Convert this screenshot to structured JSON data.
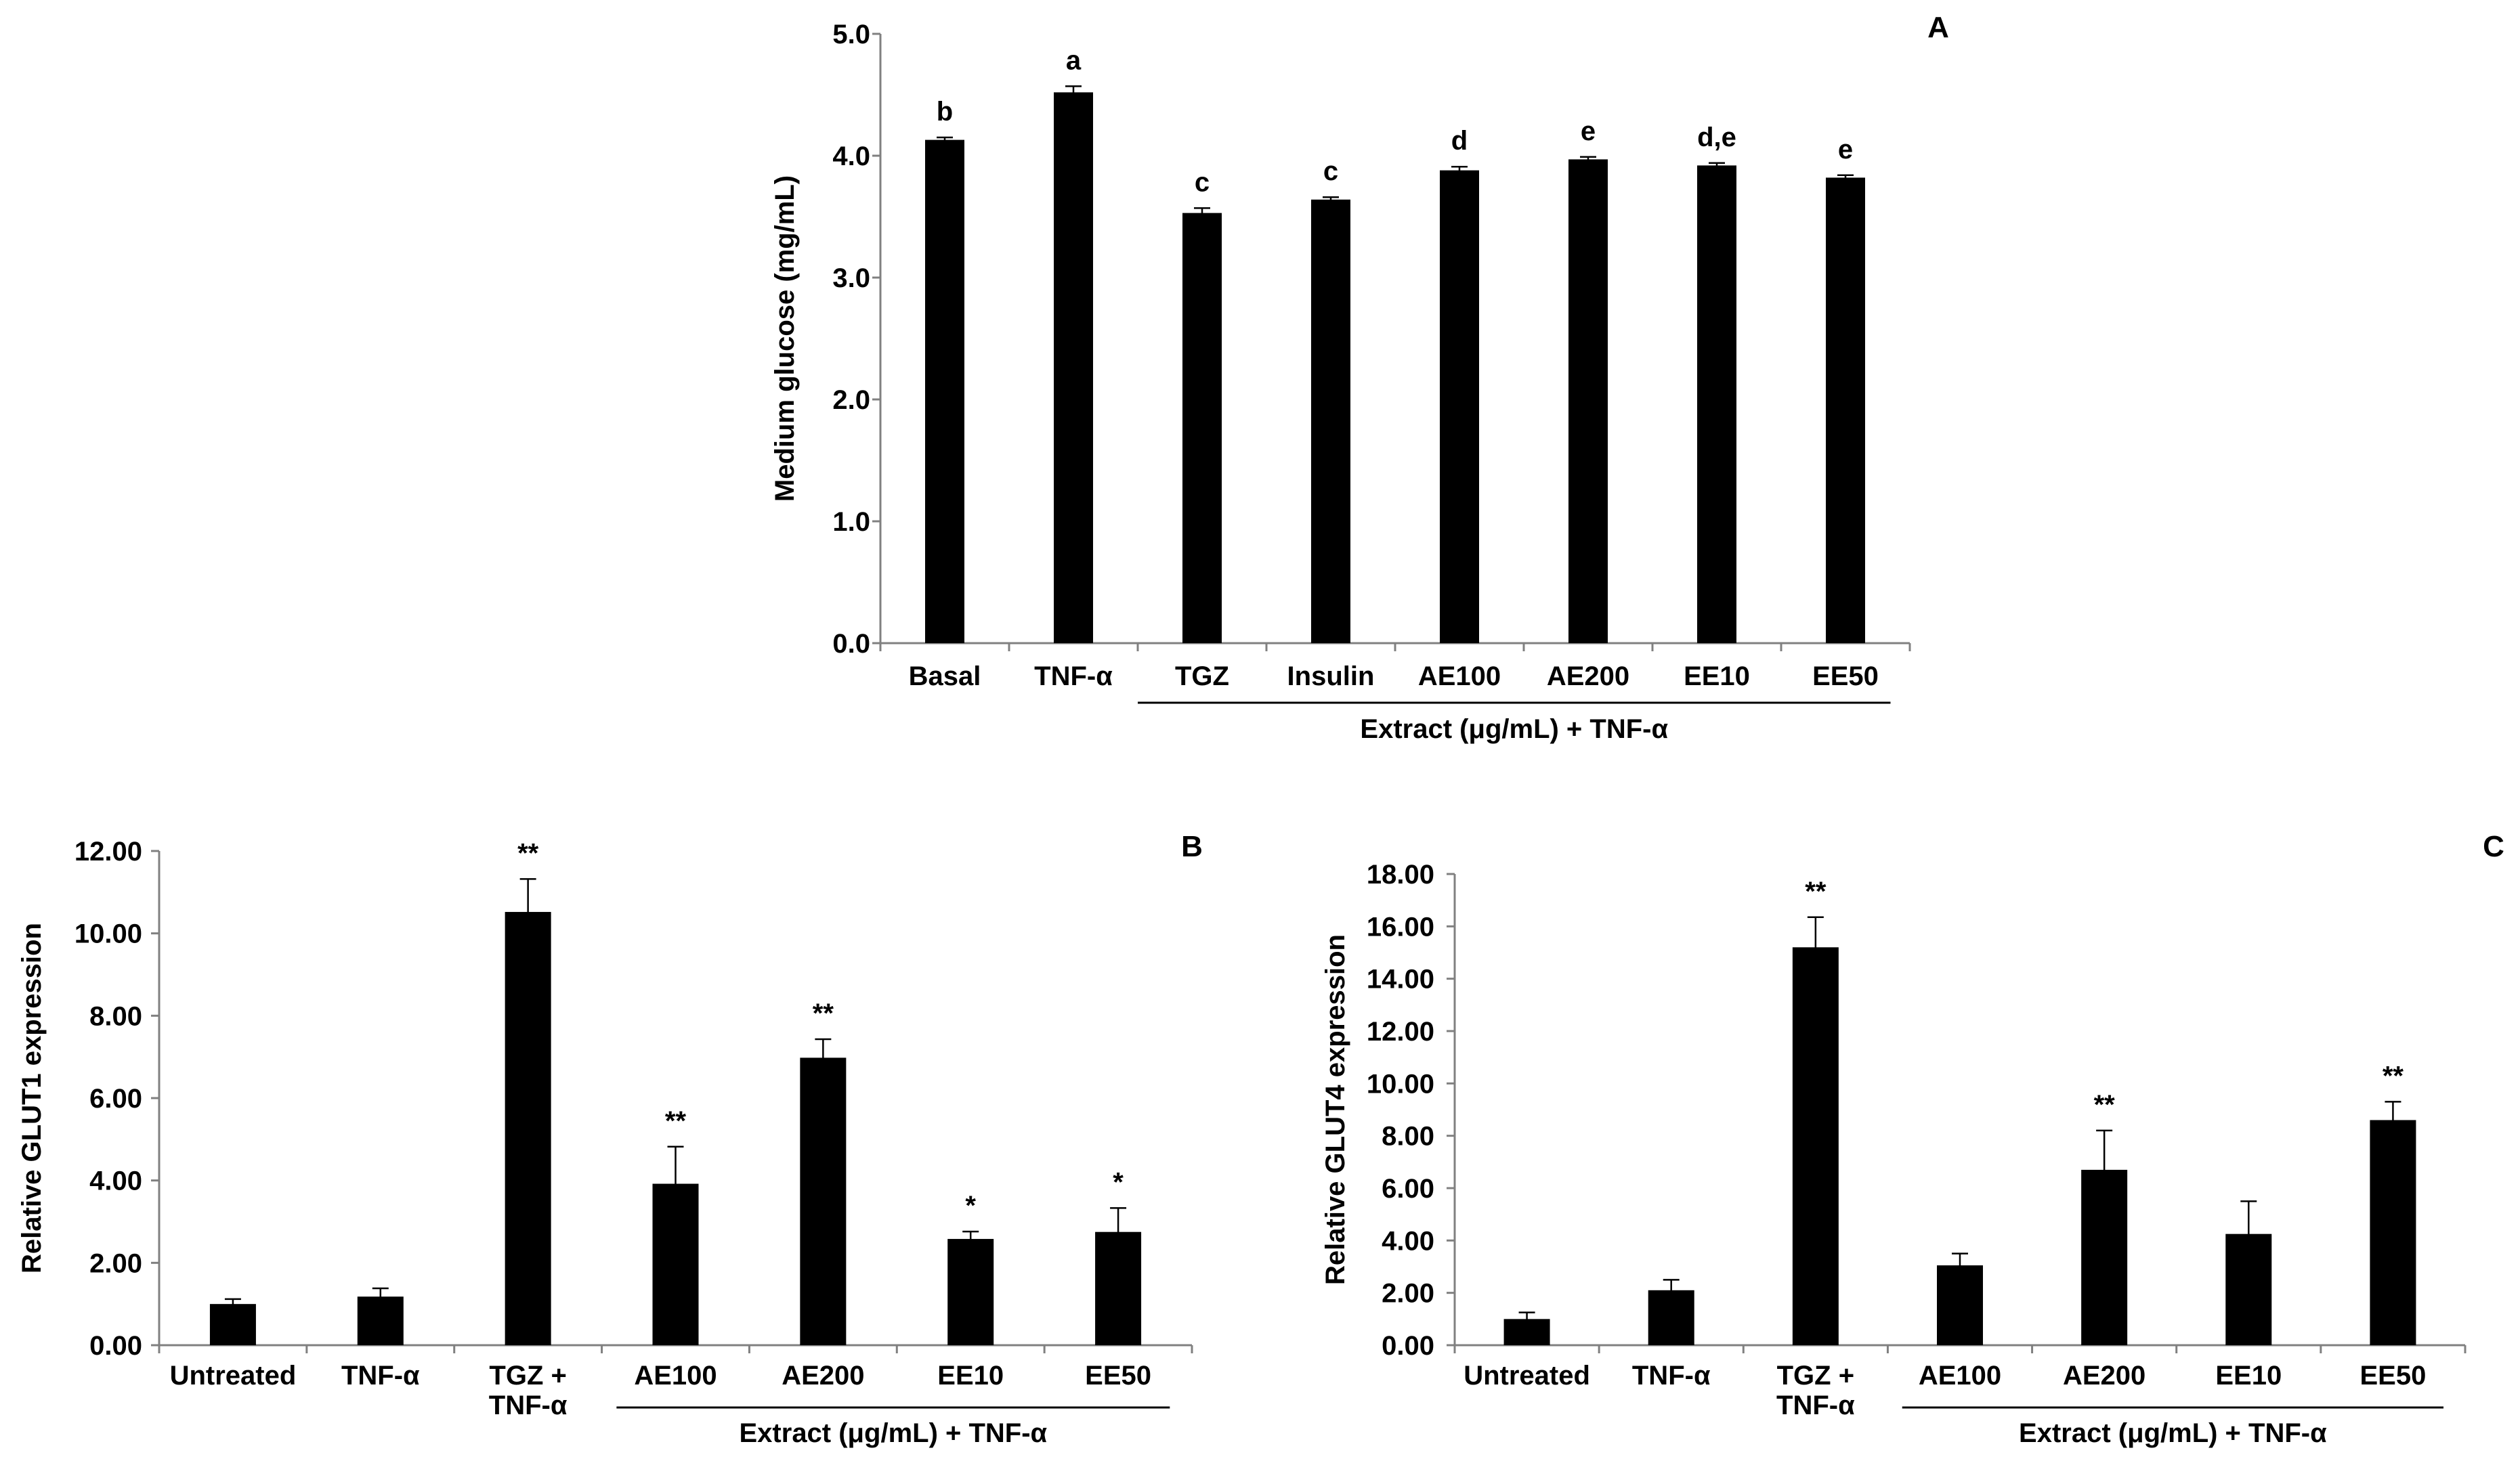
{
  "chart_data": [
    {
      "id": "A",
      "type": "bar",
      "panel_label": "A",
      "ylabel": "Medium glucose (mg/mL)",
      "xlabel": "",
      "group_label": "Extract (μg/mL) + TNF-α",
      "ylim": [
        0,
        5
      ],
      "yticks": [
        "0.0",
        "1.0",
        "2.0",
        "3.0",
        "4.0",
        "5.0"
      ],
      "categories": [
        [
          "Basal"
        ],
        [
          "TNF-α"
        ],
        [
          "TGZ"
        ],
        [
          "Insulin"
        ],
        [
          "AE100"
        ],
        [
          "AE200"
        ],
        [
          "EE10"
        ],
        [
          "EE50"
        ]
      ],
      "values": [
        4.13,
        4.52,
        3.53,
        3.64,
        3.88,
        3.97,
        3.92,
        3.82
      ],
      "errors": [
        0.02,
        0.05,
        0.04,
        0.02,
        0.03,
        0.02,
        0.02,
        0.02
      ],
      "annotations": [
        "b",
        "a",
        "c",
        "c",
        "d",
        "e",
        "d,e",
        "e"
      ],
      "group_range": [
        2,
        7
      ]
    },
    {
      "id": "B",
      "type": "bar",
      "panel_label": "B",
      "ylabel": "Relative GLUT1 expression",
      "xlabel": "",
      "group_label": "Extract (μg/mL) + TNF-α",
      "ylim": [
        0,
        12
      ],
      "yticks": [
        "0.00",
        "2.00",
        "4.00",
        "6.00",
        "8.00",
        "10.00",
        "12.00"
      ],
      "categories": [
        [
          "Untreated"
        ],
        [
          "TNF-α"
        ],
        [
          "TGZ  +",
          "TNF-α"
        ],
        [
          "AE100"
        ],
        [
          "AE200"
        ],
        [
          "EE10"
        ],
        [
          "EE50"
        ]
      ],
      "values": [
        1.0,
        1.18,
        10.52,
        3.92,
        6.98,
        2.58,
        2.75
      ],
      "errors": [
        0.12,
        0.2,
        0.8,
        0.9,
        0.45,
        0.18,
        0.58
      ],
      "annotations": [
        "",
        "",
        "**",
        "**",
        "**",
        "*",
        "*"
      ],
      "group_range": [
        3,
        6
      ]
    },
    {
      "id": "C",
      "type": "bar",
      "panel_label": "C",
      "ylabel": "Relative GLUT4 expression",
      "xlabel": "",
      "group_label": "Extract (μg/mL) + TNF-α",
      "ylim": [
        0,
        18
      ],
      "yticks": [
        "0.00",
        "2.00",
        "4.00",
        "6.00",
        "8.00",
        "10.00",
        "12.00",
        "14.00",
        "16.00",
        "18.00"
      ],
      "categories": [
        [
          "Untreated"
        ],
        [
          "TNF-α"
        ],
        [
          "TGZ  +",
          "TNF-α"
        ],
        [
          "AE100"
        ],
        [
          "AE200"
        ],
        [
          "EE10"
        ],
        [
          "EE50"
        ]
      ],
      "values": [
        1.0,
        2.1,
        15.2,
        3.05,
        6.7,
        4.25,
        8.6
      ],
      "errors": [
        0.25,
        0.4,
        1.15,
        0.45,
        1.5,
        1.25,
        0.7
      ],
      "annotations": [
        "",
        "",
        "**",
        "",
        "**",
        "",
        "**"
      ],
      "group_range": [
        3,
        6
      ]
    }
  ]
}
